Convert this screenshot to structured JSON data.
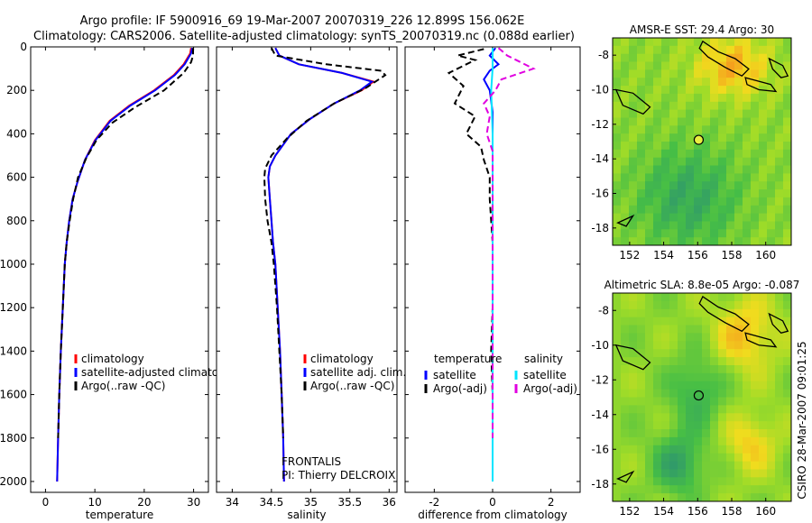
{
  "header": {
    "line1": "Argo profile: IF 5900916_69 19-Mar-2007 20070319_226 12.899S 156.062E",
    "line2": "Climatology: CARS2006. Satellite-adjusted climatology: synTS_20070319.nc (0.088d earlier)"
  },
  "side_stamp": "CSIRO 28-Mar-2007 09:01:25",
  "colors": {
    "climatology": "#ff0000",
    "satellite": "#0000ff",
    "argo": "#000000",
    "salinity_satellite": "#00e5ff",
    "salinity_argo": "#e000e0"
  },
  "chart_data": [
    {
      "type": "line",
      "xlabel": "temperature",
      "xlim": [
        -3,
        33
      ],
      "ylim": [
        0,
        2050
      ],
      "y_reversed": true,
      "xticks": [
        0,
        10,
        20,
        30
      ],
      "yticks": [
        0,
        200,
        400,
        600,
        800,
        1000,
        1200,
        1400,
        1600,
        1800,
        2000
      ],
      "legend": [
        "climatology",
        "satellite-adjusted climatology",
        "Argo(..raw -QC)"
      ],
      "series": [
        {
          "name": "climatology",
          "color": "#ff0000",
          "dash": false,
          "points": [
            [
              29.5,
              5
            ],
            [
              29.3,
              30
            ],
            [
              28,
              80
            ],
            [
              26,
              130
            ],
            [
              22,
              200
            ],
            [
              17,
              270
            ],
            [
              13,
              340
            ],
            [
              10,
              430
            ],
            [
              8,
              520
            ],
            [
              6.5,
              620
            ],
            [
              5.5,
              700
            ],
            [
              4.8,
              800
            ],
            [
              4.3,
              900
            ],
            [
              3.9,
              1000
            ],
            [
              3.5,
              1200
            ],
            [
              3.1,
              1400
            ],
            [
              2.8,
              1600
            ],
            [
              2.55,
              1800
            ],
            [
              2.35,
              2000
            ]
          ]
        },
        {
          "name": "satellite-adjusted climatology",
          "color": "#0000ff",
          "dash": false,
          "points": [
            [
              29.7,
              5
            ],
            [
              29.5,
              30
            ],
            [
              28.2,
              80
            ],
            [
              26.2,
              130
            ],
            [
              22.2,
              200
            ],
            [
              17.2,
              270
            ],
            [
              13.2,
              340
            ],
            [
              10.1,
              430
            ],
            [
              8,
              520
            ],
            [
              6.5,
              620
            ],
            [
              5.5,
              700
            ],
            [
              4.8,
              800
            ],
            [
              4.3,
              900
            ],
            [
              3.9,
              1000
            ],
            [
              3.5,
              1200
            ],
            [
              3.1,
              1400
            ],
            [
              2.8,
              1600
            ],
            [
              2.55,
              1800
            ],
            [
              2.35,
              2000
            ]
          ]
        },
        {
          "name": "Argo(..raw -QC)",
          "color": "#000000",
          "dash": true,
          "points": [
            [
              29.9,
              5
            ],
            [
              29.9,
              40
            ],
            [
              29.5,
              70
            ],
            [
              28,
              120
            ],
            [
              24,
              200
            ],
            [
              18,
              280
            ],
            [
              13.5,
              350
            ],
            [
              10.3,
              430
            ],
            [
              8.3,
              510
            ],
            [
              6.6,
              600
            ],
            [
              5.6,
              700
            ],
            [
              4.9,
              800
            ],
            [
              4.3,
              900
            ],
            [
              3.9,
              1000
            ],
            [
              3.5,
              1200
            ],
            [
              3.1,
              1400
            ],
            [
              2.8,
              1600
            ],
            [
              2.55,
              1800
            ]
          ]
        }
      ]
    },
    {
      "type": "line",
      "xlabel": "salinity",
      "xlim": [
        33.8,
        36.1
      ],
      "ylim": [
        0,
        2050
      ],
      "y_reversed": true,
      "xticks": [
        34,
        34.5,
        35,
        35.5,
        36
      ],
      "legend": [
        "climatology",
        "satellite adj. clim.",
        "Argo(..raw -QC)"
      ],
      "annotation": [
        "FRONTALIS",
        "PI: Thierry DELCROIX"
      ],
      "series": [
        {
          "name": "climatology",
          "color": "#ff0000",
          "dash": false,
          "points": [
            [
              34.55,
              5
            ],
            [
              34.6,
              40
            ],
            [
              34.85,
              80
            ],
            [
              35.4,
              120
            ],
            [
              35.8,
              160
            ],
            [
              35.65,
              200
            ],
            [
              35.3,
              260
            ],
            [
              35,
              330
            ],
            [
              34.75,
              400
            ],
            [
              34.55,
              500
            ],
            [
              34.48,
              550
            ],
            [
              34.46,
              600
            ],
            [
              34.48,
              700
            ],
            [
              34.5,
              800
            ],
            [
              34.52,
              900
            ],
            [
              34.55,
              1000
            ],
            [
              34.58,
              1200
            ],
            [
              34.61,
              1400
            ],
            [
              34.63,
              1600
            ],
            [
              34.65,
              1800
            ],
            [
              34.66,
              2000
            ]
          ]
        },
        {
          "name": "satellite adj. clim.",
          "color": "#0000ff",
          "dash": false,
          "points": [
            [
              34.55,
              5
            ],
            [
              34.6,
              40
            ],
            [
              34.85,
              80
            ],
            [
              35.4,
              120
            ],
            [
              35.78,
              160
            ],
            [
              35.63,
              200
            ],
            [
              35.3,
              260
            ],
            [
              35,
              330
            ],
            [
              34.75,
              400
            ],
            [
              34.55,
              500
            ],
            [
              34.48,
              550
            ],
            [
              34.46,
              600
            ],
            [
              34.48,
              700
            ],
            [
              34.5,
              800
            ],
            [
              34.52,
              900
            ],
            [
              34.55,
              1000
            ],
            [
              34.58,
              1200
            ],
            [
              34.61,
              1400
            ],
            [
              34.63,
              1600
            ],
            [
              34.65,
              1800
            ],
            [
              34.66,
              2000
            ]
          ]
        },
        {
          "name": "Argo(..raw -QC)",
          "color": "#000000",
          "dash": true,
          "points": [
            [
              34.5,
              5
            ],
            [
              34.55,
              40
            ],
            [
              35.2,
              80
            ],
            [
              35.9,
              110
            ],
            [
              35.95,
              130
            ],
            [
              35.7,
              190
            ],
            [
              35.3,
              260
            ],
            [
              34.95,
              340
            ],
            [
              34.7,
              420
            ],
            [
              34.5,
              500
            ],
            [
              34.42,
              560
            ],
            [
              34.41,
              600
            ],
            [
              34.42,
              700
            ],
            [
              34.45,
              800
            ],
            [
              34.5,
              900
            ],
            [
              34.53,
              1000
            ],
            [
              34.57,
              1200
            ],
            [
              34.6,
              1400
            ],
            [
              34.63,
              1600
            ],
            [
              34.65,
              1800
            ]
          ]
        }
      ]
    },
    {
      "type": "line",
      "xlabel": "difference from climatology",
      "xlim": [
        -3,
        3
      ],
      "ylim": [
        0,
        2050
      ],
      "y_reversed": true,
      "xticks": [
        -2,
        0,
        2
      ],
      "legend_temperature_heading": "temperature",
      "legend_salinity_heading": "salinity",
      "legend": [
        "satellite",
        "Argo(-adj)",
        "satellite",
        "Argo(-adj)"
      ],
      "series": [
        {
          "name": "temperature satellite",
          "color": "#0000ff",
          "dash": false,
          "points": [
            [
              0.1,
              5
            ],
            [
              -0.1,
              40
            ],
            [
              0.2,
              80
            ],
            [
              -0.1,
              110
            ],
            [
              -0.3,
              150
            ],
            [
              -0.1,
              200
            ],
            [
              0,
              300
            ],
            [
              0,
              500
            ],
            [
              0,
              700
            ],
            [
              0,
              1000
            ],
            [
              0,
              1500
            ],
            [
              0,
              2000
            ]
          ]
        },
        {
          "name": "temperature Argo(-adj)",
          "color": "#000000",
          "dash": true,
          "points": [
            [
              -0.3,
              10
            ],
            [
              -1.2,
              40
            ],
            [
              -0.6,
              60
            ],
            [
              -1.5,
              120
            ],
            [
              -1.0,
              180
            ],
            [
              -1.3,
              260
            ],
            [
              -0.6,
              320
            ],
            [
              -0.9,
              400
            ],
            [
              -0.4,
              460
            ],
            [
              -0.3,
              520
            ],
            [
              -0.1,
              600
            ],
            [
              -0.1,
              700
            ],
            [
              -0.05,
              800
            ],
            [
              0,
              900
            ],
            [
              0,
              1000
            ],
            [
              0,
              1200
            ],
            [
              -0.05,
              1400
            ],
            [
              0,
              1600
            ],
            [
              0,
              1800
            ]
          ]
        },
        {
          "name": "salinity satellite",
          "color": "#00e5ff",
          "dash": false,
          "points": [
            [
              0,
              5
            ],
            [
              0,
              100
            ],
            [
              -0.05,
              200
            ],
            [
              0,
              400
            ],
            [
              0,
              800
            ],
            [
              0,
              1200
            ],
            [
              0,
              1600
            ],
            [
              0,
              2000
            ]
          ]
        },
        {
          "name": "salinity Argo(-adj)",
          "color": "#e000e0",
          "dash": true,
          "points": [
            [
              0.2,
              5
            ],
            [
              0.5,
              40
            ],
            [
              1.4,
              100
            ],
            [
              0.3,
              150
            ],
            [
              0.1,
              200
            ],
            [
              -0.3,
              260
            ],
            [
              -0.1,
              320
            ],
            [
              -0.2,
              400
            ],
            [
              0,
              480
            ],
            [
              0,
              600
            ],
            [
              0,
              800
            ],
            [
              0,
              1000
            ],
            [
              0,
              1400
            ],
            [
              0,
              1800
            ]
          ]
        }
      ]
    },
    {
      "type": "heatmap",
      "title": "AMSR-E SST: 29.4 Argo: 30",
      "xlim": [
        151,
        161.5
      ],
      "ylim": [
        -19,
        -7
      ],
      "xticks": [
        152,
        154,
        156,
        158,
        160
      ],
      "yticks": [
        -8,
        -10,
        -12,
        -14,
        -16,
        -18
      ],
      "profile_marker": {
        "lon": 156.06,
        "lat": -12.9
      }
    },
    {
      "type": "heatmap",
      "title": "Altimetric SLA: 8.8e-05 Argo: -0.087",
      "xlim": [
        151,
        161.5
      ],
      "ylim": [
        -19,
        -7
      ],
      "xticks": [
        152,
        154,
        156,
        158,
        160
      ],
      "yticks": [
        -8,
        -10,
        -12,
        -14,
        -16,
        -18
      ],
      "profile_marker": {
        "lon": 156.06,
        "lat": -12.9
      }
    }
  ]
}
